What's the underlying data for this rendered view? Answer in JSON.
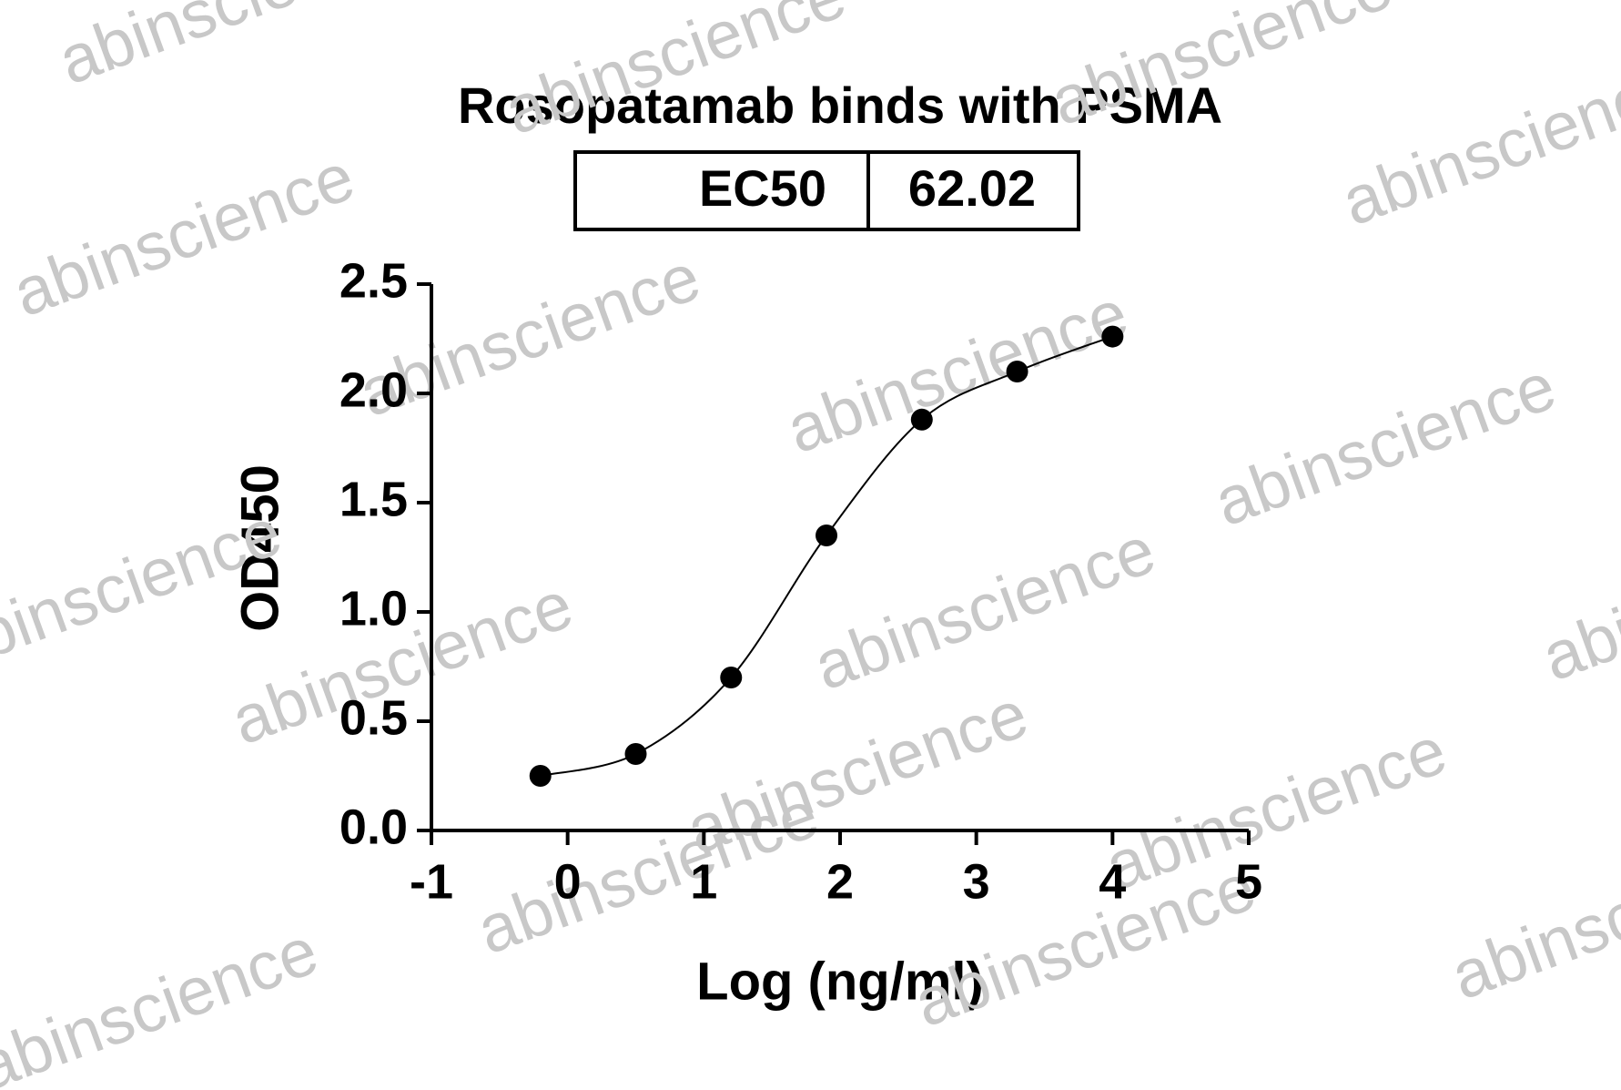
{
  "chart_data": {
    "type": "scatter",
    "title": "Rosopatamab binds with PSMA",
    "annotation": {
      "label": "EC50",
      "value": 62.02
    },
    "watermark": "abinscience",
    "x_label": "Log (ng/ml)",
    "y_label": "OD450",
    "series": [
      {
        "color": "#000000",
        "x": [
          -0.2,
          0.5,
          1.2,
          1.9,
          2.6,
          3.3,
          4.0
        ],
        "values": [
          0.25,
          0.35,
          0.7,
          1.35,
          1.88,
          2.1,
          2.26
        ]
      }
    ],
    "xlim": [
      -1,
      5
    ],
    "xticks": [
      -1,
      0,
      1,
      2,
      3,
      4,
      5
    ],
    "ylim": [
      0,
      2.5
    ],
    "yticks": [
      {
        "value": 0,
        "label": "0.0"
      },
      0.5,
      {
        "value": 1,
        "label": "1.0"
      },
      1.5,
      {
        "value": 2,
        "label": "2.0"
      },
      2.5
    ],
    "fit_curve": true
  }
}
